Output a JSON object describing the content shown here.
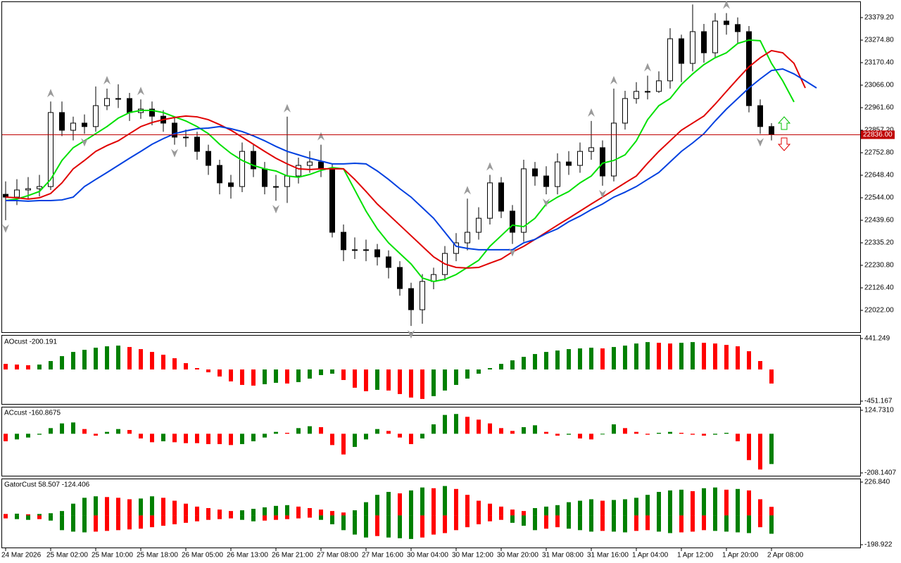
{
  "chart_data": [
    {
      "type": "candlestick",
      "open": [
        22560,
        22547,
        22580,
        22586,
        22596,
        22939,
        22857,
        22890,
        22874,
        22971,
        23004,
        23004,
        22939,
        22955,
        22922,
        22890,
        22825,
        22825,
        22759,
        22694,
        22613,
        22596,
        22759,
        22678,
        22596,
        22596,
        22645,
        22694,
        22710,
        22678,
        22384,
        22303,
        22303,
        22303,
        22270,
        22221,
        22123,
        22025,
        22156,
        22188,
        22286,
        22335,
        22384,
        22449,
        22613,
        22482,
        22384,
        22678,
        22645,
        22596,
        22710,
        22694,
        22759,
        22776,
        22645,
        22890,
        23004,
        23037,
        23037,
        23086,
        23281,
        23167,
        23314,
        23216,
        23363,
        23347,
        23314,
        22971,
        22874
      ],
      "high": [
        22620,
        22630,
        22640,
        22650,
        22990,
        22990,
        22920,
        22930,
        23060,
        23050,
        23070,
        23030,
        23000,
        22990,
        22950,
        22920,
        22860,
        22850,
        22790,
        22720,
        22650,
        22800,
        22790,
        22710,
        22650,
        22920,
        22730,
        22760,
        22790,
        22700,
        22420,
        22360,
        22350,
        22330,
        22300,
        22250,
        22150,
        22190,
        22220,
        22320,
        22380,
        22540,
        22500,
        22650,
        22640,
        22510,
        22720,
        22710,
        22690,
        22750,
        22760,
        22800,
        22900,
        22810,
        23050,
        23040,
        23080,
        23110,
        23130,
        23330,
        23300,
        23440,
        23350,
        23400,
        23400,
        23380,
        23340,
        23000,
        22890
      ],
      "low": [
        22440,
        22510,
        22540,
        22550,
        22580,
        22830,
        22810,
        22840,
        22850,
        22950,
        22960,
        22900,
        22910,
        22880,
        22850,
        22790,
        22780,
        22720,
        22650,
        22560,
        22540,
        22570,
        22640,
        22560,
        22530,
        22520,
        22610,
        22660,
        22640,
        22360,
        22250,
        22260,
        22250,
        22230,
        22170,
        22090,
        21950,
        21960,
        22120,
        22160,
        22250,
        22300,
        22350,
        22420,
        22450,
        22330,
        22340,
        22600,
        22560,
        22560,
        22650,
        22660,
        22720,
        22600,
        22620,
        22860,
        22980,
        23000,
        23030,
        23050,
        23080,
        23130,
        23170,
        23190,
        23300,
        23260,
        22940,
        22840,
        22810
      ],
      "close": [
        22547,
        22580,
        22586,
        22596,
        22939,
        22857,
        22890,
        22874,
        22971,
        23004,
        23004,
        22939,
        22955,
        22922,
        22890,
        22825,
        22825,
        22759,
        22694,
        22613,
        22596,
        22759,
        22678,
        22596,
        22596,
        22645,
        22694,
        22710,
        22678,
        22384,
        22303,
        22303,
        22303,
        22270,
        22221,
        22123,
        22025,
        22156,
        22188,
        22286,
        22335,
        22384,
        22449,
        22613,
        22482,
        22384,
        22678,
        22645,
        22596,
        22710,
        22694,
        22759,
        22776,
        22645,
        22890,
        23004,
        23037,
        23037,
        23086,
        23281,
        23167,
        23314,
        23216,
        23363,
        23347,
        23314,
        22971,
        22874,
        22836
      ],
      "up_color": "#ffffff",
      "down_color": "#000000",
      "overlays": [
        {
          "color": "#00e000",
          "values": [
            22531,
            22538,
            22554,
            22573,
            22629,
            22717,
            22776,
            22808,
            22841,
            22874,
            22913,
            22939,
            22949,
            22949,
            22939,
            22919,
            22900,
            22874,
            22841,
            22792,
            22750,
            22717,
            22694,
            22678,
            22668,
            22645,
            22639,
            22652,
            22671,
            22684,
            22678,
            22580,
            22482,
            22400,
            22335,
            22286,
            22237,
            22172,
            22156,
            22166,
            22188,
            22221,
            22254,
            22319,
            22368,
            22417,
            22410,
            22449,
            22515,
            22547,
            22573,
            22613,
            22645,
            22704,
            22717,
            22743,
            22808,
            22906,
            22971,
            23004,
            23069,
            23118,
            23161,
            23193,
            23216,
            23259,
            23275,
            23272,
            23167,
            23086,
            22988
          ]
        },
        {
          "color": "#e00000",
          "values": [
            22547,
            22544,
            22538,
            22544,
            22564,
            22613,
            22678,
            22717,
            22759,
            22786,
            22808,
            22841,
            22874,
            22893,
            22906,
            22916,
            22923,
            22919,
            22906,
            22883,
            22857,
            22825,
            22792,
            22759,
            22727,
            22701,
            22678,
            22675,
            22678,
            22678,
            22678,
            22629,
            22573,
            22515,
            22466,
            22417,
            22368,
            22319,
            22270,
            22237,
            22221,
            22218,
            22221,
            22241,
            22260,
            22293,
            22319,
            22351,
            22384,
            22417,
            22449,
            22482,
            22515,
            22547,
            22580,
            22613,
            22645,
            22704,
            22759,
            22808,
            22857,
            22890,
            22923,
            22978,
            23037,
            23095,
            23151,
            23193,
            23226,
            23216,
            23167,
            23053
          ]
        },
        {
          "color": "#0040e0",
          "values": [
            22531,
            22531,
            22528,
            22531,
            22531,
            22534,
            22547,
            22596,
            22629,
            22661,
            22694,
            22727,
            22759,
            22792,
            22818,
            22841,
            22854,
            22864,
            22867,
            22874,
            22864,
            22851,
            22831,
            22808,
            22782,
            22759,
            22743,
            22727,
            22714,
            22701,
            22701,
            22704,
            22701,
            22668,
            22629,
            22586,
            22547,
            22498,
            22449,
            22384,
            22319,
            22309,
            22303,
            22303,
            22303,
            22303,
            22335,
            22351,
            22378,
            22400,
            22433,
            22459,
            22489,
            22515,
            22547,
            22570,
            22596,
            22629,
            22661,
            22710,
            22759,
            22798,
            22841,
            22900,
            22955,
            23004,
            23053,
            23095,
            23134,
            23141,
            23118,
            23086,
            23053
          ]
        }
      ],
      "fractals": {
        "color": "#9a9a9a",
        "up": [
          4,
          9,
          12,
          25,
          28,
          41,
          43,
          52,
          54,
          57,
          61,
          64
        ],
        "down": [
          0,
          7,
          15,
          24,
          36,
          45,
          48,
          53,
          67
        ]
      },
      "ylim": [
        21920.9,
        23454.2
      ],
      "yticks": [
        {
          "value": 23379.2,
          "label": "23379.20"
        },
        {
          "value": 23274.8,
          "label": "23274.80"
        },
        {
          "value": 23170.4,
          "label": "23170.40"
        },
        {
          "value": 23066,
          "label": "23066.00"
        },
        {
          "value": 22961.6,
          "label": "22961.60"
        },
        {
          "value": 22857.2,
          "label": "22857.20"
        },
        {
          "value": 22752.8,
          "label": "22752.80"
        },
        {
          "value": 22648.4,
          "label": "22648.40"
        },
        {
          "value": 22544,
          "label": "22544.00"
        },
        {
          "value": 22439.6,
          "label": "22439.60"
        },
        {
          "value": 22335.2,
          "label": "22335.20"
        },
        {
          "value": 22230.8,
          "label": "22230.80"
        },
        {
          "value": 22126.4,
          "label": "22126.40"
        },
        {
          "value": 22022,
          "label": "22022.00"
        }
      ],
      "last_price": {
        "value": 22836,
        "label": "22836.00"
      },
      "last_price_color": "#c00000",
      "xticks": [
        {
          "value": 0,
          "label": "24 Mar 2026"
        },
        {
          "value": 4,
          "label": "25 Mar 02:00"
        },
        {
          "value": 8,
          "label": "25 Mar 10:00"
        },
        {
          "value": 12,
          "label": "25 Mar 18:00"
        },
        {
          "value": 16,
          "label": "26 Mar 05:00"
        },
        {
          "value": 20,
          "label": "26 Mar 13:00"
        },
        {
          "value": 24,
          "label": "26 Mar 21:00"
        },
        {
          "value": 28,
          "label": "27 Mar 08:00"
        },
        {
          "value": 32,
          "label": "27 Mar 16:00"
        },
        {
          "value": 36,
          "label": "30 Mar 04:00"
        },
        {
          "value": 40,
          "label": "30 Mar 12:00"
        },
        {
          "value": 44,
          "label": "30 Mar 20:00"
        },
        {
          "value": 48,
          "label": "31 Mar 08:00"
        },
        {
          "value": 52,
          "label": "31 Mar 16:00"
        },
        {
          "value": 56,
          "label": "1 Apr 04:00"
        },
        {
          "value": 60,
          "label": "1 Apr 12:00"
        },
        {
          "value": 64,
          "label": "1 Apr 20:00"
        },
        {
          "value": 68,
          "label": "2 Apr 08:00"
        }
      ]
    },
    {
      "type": "bar",
      "title": "AOcust -200.191",
      "up_color": "#008000",
      "down_color": "#ff0000",
      "values": [
        80,
        70,
        60,
        70,
        120,
        190,
        250,
        280,
        310,
        330,
        340,
        320,
        290,
        250,
        210,
        160,
        90,
        20,
        -40,
        -100,
        -170,
        -220,
        -230,
        -210,
        -190,
        -200,
        -180,
        -130,
        -80,
        -60,
        -150,
        -260,
        -310,
        -290,
        -300,
        -350,
        -400,
        -420,
        -380,
        -300,
        -220,
        -130,
        -60,
        20,
        80,
        130,
        180,
        220,
        250,
        270,
        290,
        300,
        310,
        300,
        320,
        340,
        370,
        390,
        380,
        370,
        380,
        390,
        380,
        370,
        350,
        330,
        260,
        120,
        -200.191
      ],
      "ylim": [
        -451.167,
        441.249
      ],
      "yticks": [
        441.249,
        -451.167
      ]
    },
    {
      "type": "bar",
      "title": "ACcust -160.8675",
      "up_color": "#008000",
      "down_color": "#ff0000",
      "values": [
        -40,
        -30,
        -20,
        -5,
        30,
        55,
        60,
        25,
        -10,
        10,
        25,
        20,
        -25,
        -45,
        -40,
        -45,
        -50,
        -50,
        -55,
        -55,
        -60,
        -55,
        -40,
        -20,
        10,
        5,
        30,
        40,
        35,
        -60,
        -110,
        -70,
        -30,
        25,
        15,
        -20,
        -55,
        -25,
        50,
        100,
        105,
        90,
        75,
        55,
        30,
        15,
        35,
        45,
        10,
        -10,
        -5,
        -25,
        -30,
        0,
        50,
        30,
        10,
        -5,
        5,
        10,
        5,
        -5,
        -10,
        -5,
        5,
        -40,
        -140,
        -190,
        -160.8675
      ],
      "ylim": [
        -208.1407,
        124.731
      ],
      "yticks": [
        {
          "value": 124.731,
          "label": "124.7310"
        },
        -208.1407
      ]
    },
    {
      "type": "gator",
      "title": "GatorCust 58.507 -124.406",
      "up_color": "#008000",
      "down_color": "#ff0000",
      "upper": [
        10,
        12,
        8,
        10,
        15,
        30,
        80,
        120,
        130,
        125,
        120,
        110,
        115,
        130,
        120,
        100,
        80,
        60,
        50,
        40,
        30,
        35,
        45,
        55,
        65,
        70,
        60,
        50,
        40,
        30,
        20,
        35,
        90,
        140,
        160,
        150,
        170,
        190,
        185,
        200,
        180,
        140,
        100,
        80,
        60,
        40,
        30,
        50,
        60,
        70,
        90,
        100,
        110,
        100,
        105,
        110,
        120,
        140,
        160,
        170,
        175,
        165,
        185,
        190,
        175,
        180,
        170,
        110,
        58.507
      ],
      "lower": [
        -20,
        -25,
        -30,
        -25,
        -35,
        -100,
        -110,
        -115,
        -110,
        -105,
        -100,
        -95,
        -90,
        -80,
        -70,
        -60,
        -50,
        -40,
        -30,
        -25,
        -20,
        -30,
        -40,
        -35,
        -30,
        -25,
        -20,
        -15,
        -30,
        -60,
        -100,
        -130,
        -150,
        -140,
        -150,
        -155,
        -160,
        -150,
        -130,
        -120,
        -100,
        -80,
        -60,
        -40,
        -30,
        -50,
        -70,
        -100,
        -90,
        -80,
        -90,
        -100,
        -110,
        -105,
        -110,
        -115,
        -105,
        -100,
        -110,
        -120,
        -115,
        -110,
        -100,
        -105,
        -110,
        -115,
        -120,
        -80,
        -124.406
      ],
      "ylim": [
        -198.922,
        226.84
      ],
      "yticks": [
        {
          "value": 226.84,
          "label": "226.840"
        },
        -198.922
      ]
    }
  ]
}
